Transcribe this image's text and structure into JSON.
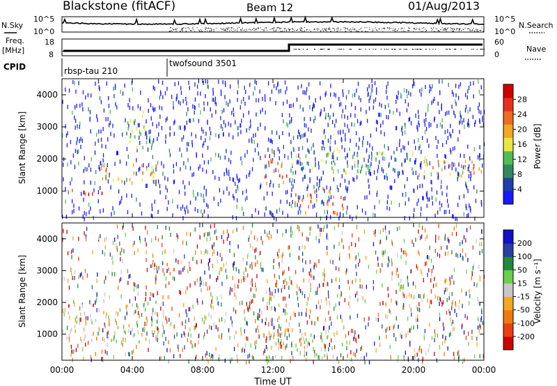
{
  "header": {
    "station": "Blackstone (fitACF)",
    "beam": "Beam 12",
    "date": "01/Aug/2013"
  },
  "aux": {
    "nsky_label": "N.Sky",
    "nsearch_label": "N.Search",
    "nsky_ticks": [
      "10^5",
      "10^0"
    ],
    "nsearch_ticks": [
      "10^5",
      "10^0"
    ],
    "freq_label": "Freq.",
    "freq_unit": "[MHz]",
    "freq_ticks": [
      "18",
      "8"
    ],
    "nave_label": "Nave",
    "nave_ticks": [
      "60",
      "0"
    ],
    "cpid_label": "CPID",
    "cpid_segments": [
      {
        "name": "rbsp-tau 210",
        "start_hour": 0
      },
      {
        "name": "twofsound 3501",
        "start_hour": 6
      }
    ]
  },
  "colors": {
    "power": [
      "#1a1aff",
      "#1f3fa8",
      "#2f8c5a",
      "#4fc04f",
      "#e8e845",
      "#f5a623",
      "#ef6b1f",
      "#e83020",
      "#d00000"
    ],
    "velocity": [
      "#1010c8",
      "#2a3fa0",
      "#1f8a3a",
      "#6cd04a",
      "#c8c8c8",
      "#f5a623",
      "#f07a10",
      "#e84010",
      "#d00000"
    ]
  },
  "chart_data": [
    {
      "type": "heatmap",
      "panel": "power",
      "ylabel": "Slant Range [km]",
      "yticks": [
        "4000",
        "3000",
        "2000",
        "1000"
      ],
      "ylim": [
        180,
        4500
      ],
      "colorbar_label": "Power [dB]",
      "colorbar_ticks": [
        "28",
        "24",
        "20",
        "16",
        "12",
        "8",
        "4"
      ],
      "features": [
        {
          "t0": 0.0,
          "t1": 2.5,
          "r0": 950,
          "r1": 1150,
          "level": 7
        },
        {
          "t0": 2.0,
          "t1": 5.5,
          "r0": 1200,
          "r1": 1900,
          "level": 5
        },
        {
          "t0": 3.5,
          "t1": 5.2,
          "r0": 2400,
          "r1": 3600,
          "level": 3
        },
        {
          "t0": 11.5,
          "t1": 12.8,
          "r0": 1200,
          "r1": 2300,
          "level": 6
        },
        {
          "t0": 13.2,
          "t1": 16.0,
          "r0": 300,
          "r1": 1200,
          "level": 6
        },
        {
          "t0": 13.0,
          "t1": 20.0,
          "r0": 1600,
          "r1": 2400,
          "level": 3
        },
        {
          "t0": 20.0,
          "t1": 24.0,
          "r0": 1500,
          "r1": 2100,
          "level": 5
        }
      ]
    },
    {
      "type": "heatmap",
      "panel": "velocity",
      "ylabel": "Slant Range [km]",
      "yticks": [
        "4000",
        "3000",
        "2000",
        "1000"
      ],
      "ylim": [
        180,
        4500
      ],
      "xlabel": "Time UT",
      "xticks": [
        "00:00",
        "04:00",
        "08:00",
        "12:00",
        "16:00",
        "20:00",
        "00:00"
      ],
      "xlim": [
        0,
        24
      ],
      "colorbar_label": "Velocity [m s⁻¹]",
      "colorbar_ticks": [
        "200",
        "100",
        "50",
        "15",
        "-15",
        "-50",
        "-100",
        "-200"
      ],
      "features": [
        {
          "t0": 0.0,
          "t1": 5.5,
          "r0": 800,
          "r1": 2100,
          "level": 4
        },
        {
          "t0": 5.0,
          "t1": 6.5,
          "r0": 2500,
          "r1": 3300,
          "level": 7
        },
        {
          "t0": 11.5,
          "t1": 13.0,
          "r0": 700,
          "r1": 2200,
          "level": 4
        },
        {
          "t0": 13.2,
          "t1": 16.0,
          "r0": 300,
          "r1": 1200,
          "level": 4
        },
        {
          "t0": 8.0,
          "t1": 12.5,
          "r0": 180,
          "r1": 400,
          "level": 3
        }
      ]
    }
  ]
}
